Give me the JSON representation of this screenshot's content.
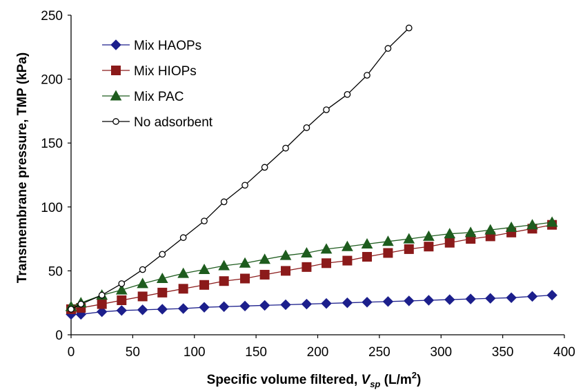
{
  "chart_data": {
    "type": "line",
    "xlabel": "Specific volume filtered,",
    "xlabel_var": "V",
    "xlabel_sub": "sp",
    "xlabel_unit": "(L/m",
    "xlabel_sup": "2",
    "xlabel_close": ")",
    "ylabel": "Transmembrane pressure, TMP (kPa)",
    "xlim": [
      0,
      400
    ],
    "ylim": [
      0,
      250
    ],
    "xticks": [
      0,
      50,
      100,
      150,
      200,
      250,
      300,
      350,
      400
    ],
    "yticks": [
      0,
      50,
      100,
      150,
      200,
      250
    ],
    "grid": false,
    "legend_position": "top-left",
    "series": [
      {
        "name": "Mix HAOPs",
        "marker": "diamond",
        "color": "#1c1f8c",
        "x": [
          0,
          8,
          25,
          41,
          58,
          74,
          91,
          108,
          124,
          141,
          157,
          174,
          191,
          207,
          224,
          240,
          257,
          274,
          290,
          307,
          324,
          340,
          357,
          374,
          390
        ],
        "y": [
          16,
          16,
          18,
          19,
          19.5,
          20,
          20.5,
          21.5,
          22,
          22.5,
          23,
          23.5,
          24,
          24.5,
          25,
          25.5,
          26,
          26.5,
          27,
          27.5,
          28,
          28.5,
          29,
          30,
          31
        ]
      },
      {
        "name": "Mix HIOPs",
        "marker": "square",
        "color": "#8b1a1a",
        "x": [
          0,
          8,
          25,
          41,
          58,
          74,
          91,
          108,
          124,
          141,
          157,
          174,
          191,
          207,
          224,
          240,
          257,
          274,
          290,
          307,
          324,
          340,
          357,
          374,
          390
        ],
        "y": [
          20,
          21,
          24,
          27,
          30,
          33,
          36,
          39,
          42,
          44,
          47,
          50,
          53,
          56,
          58,
          61,
          64,
          67,
          69,
          72,
          75,
          77,
          80,
          83,
          86
        ]
      },
      {
        "name": "Mix PAC",
        "marker": "triangle",
        "color": "#1e5c1e",
        "x": [
          0,
          8,
          25,
          41,
          58,
          74,
          91,
          108,
          124,
          141,
          157,
          174,
          191,
          207,
          224,
          240,
          257,
          274,
          290,
          307,
          324,
          340,
          357,
          374,
          390
        ],
        "y": [
          22,
          25,
          31,
          35,
          40,
          44,
          48,
          51,
          54,
          56,
          59,
          62,
          64,
          67,
          69,
          71,
          73,
          75,
          77,
          79,
          80,
          82,
          84,
          86,
          88
        ]
      },
      {
        "name": "No adsorbent",
        "marker": "circle-open",
        "color": "#000000",
        "x": [
          0,
          8,
          25,
          41,
          58,
          74,
          91,
          108,
          124,
          141,
          157,
          174,
          191,
          207,
          224,
          240,
          257,
          274
        ],
        "y": [
          20,
          24,
          31,
          40,
          51,
          63,
          76,
          89,
          104,
          117,
          131,
          146,
          162,
          176,
          188,
          203,
          224,
          240
        ]
      }
    ]
  }
}
